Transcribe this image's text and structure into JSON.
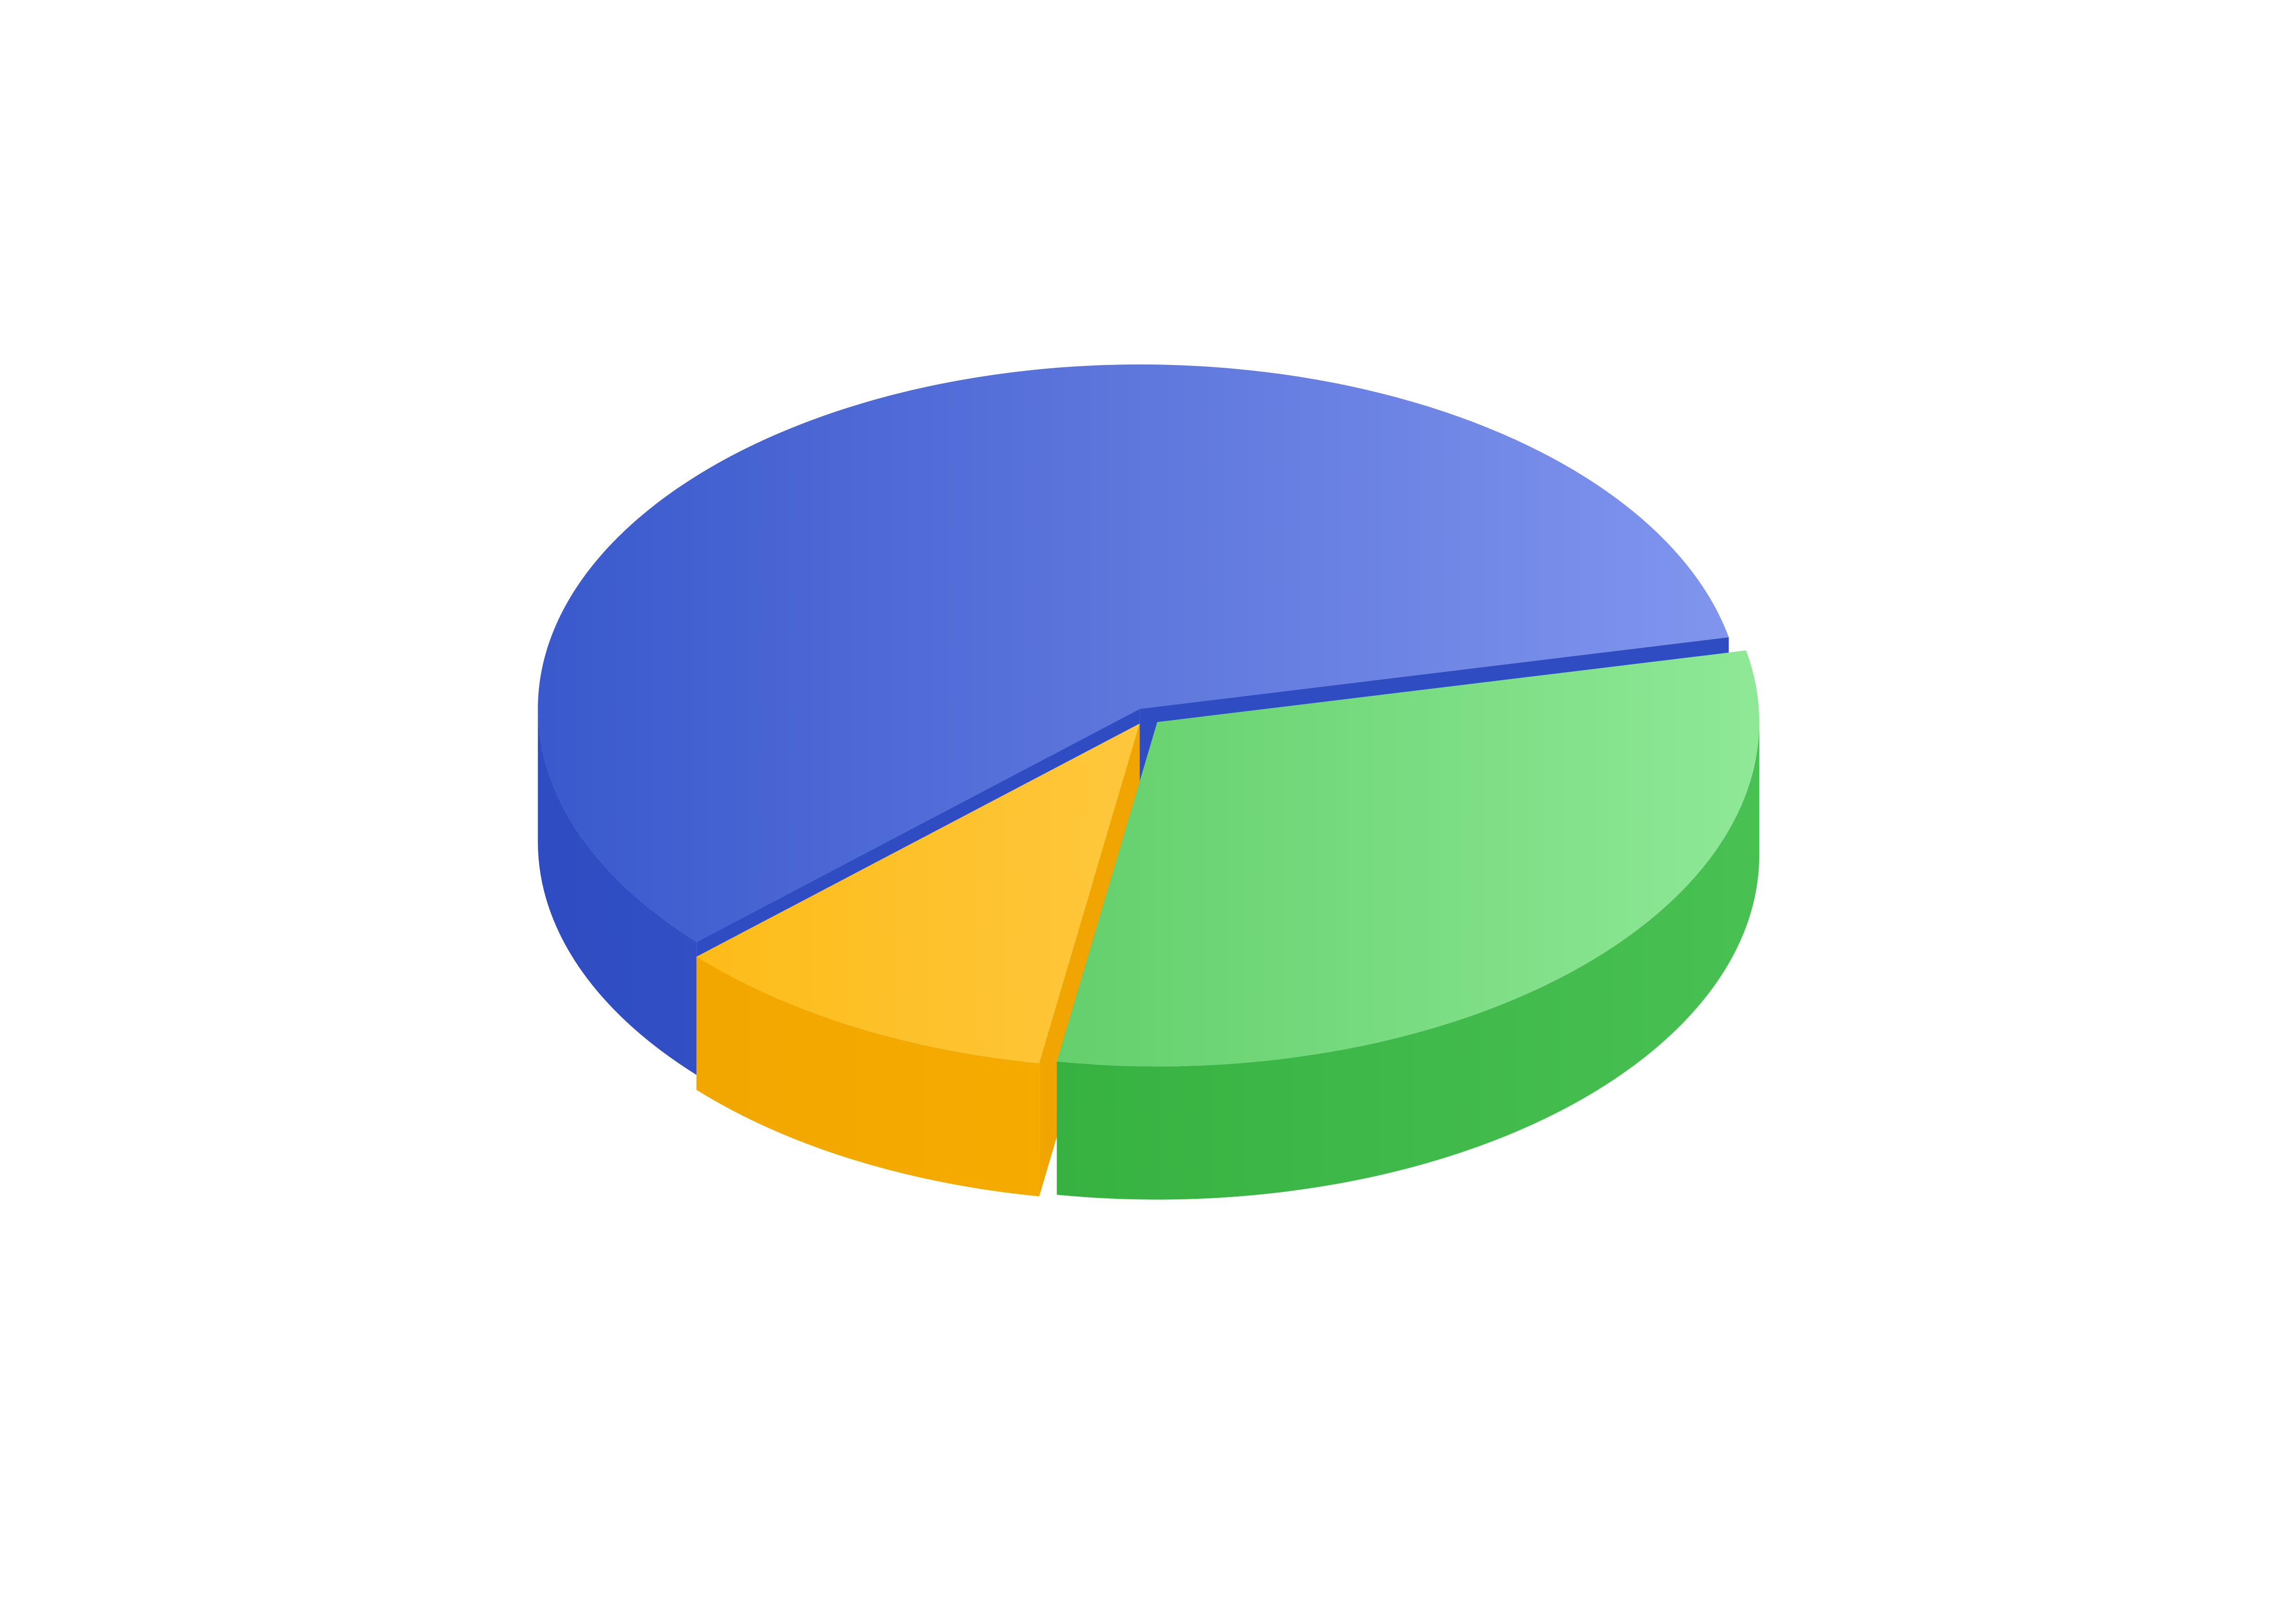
{
  "chart_data": {
    "type": "pie",
    "style": "3d-exploded",
    "title": "",
    "legend": "none",
    "data_labels": "none",
    "start_angle_deg": -12,
    "slices": [
      {
        "value": 31.0,
        "top_color_start": "#45bd4c",
        "top_color_end": "#8ee896",
        "side_color_start": "#2aa835",
        "side_color_end": "#48c052"
      },
      {
        "value": 10.5,
        "top_color_start": "#fdb80c",
        "top_color_end": "#fed66e",
        "side_color_start": "#f0a500",
        "side_color_end": "#fdb300"
      },
      {
        "value": 58.5,
        "top_color_start": "#3a59cc",
        "top_color_end": "#8296ee",
        "side_color_start": "#2f4cc2",
        "side_color_end": "#4563d4"
      }
    ]
  }
}
